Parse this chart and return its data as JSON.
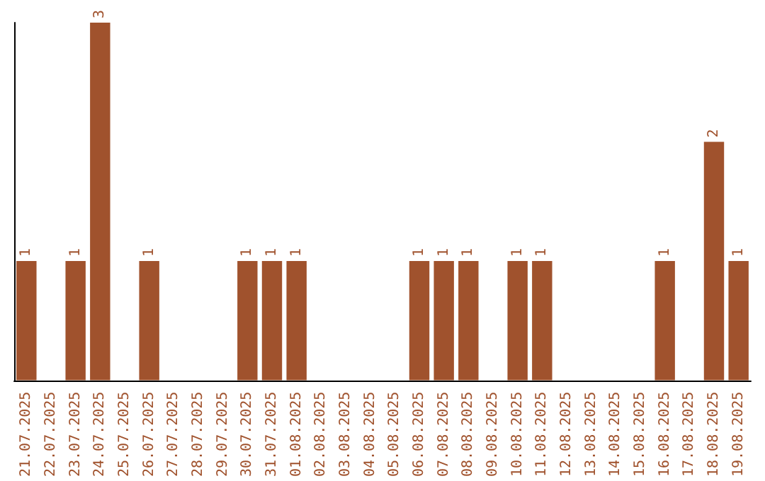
{
  "chart_data": {
    "type": "bar",
    "categories": [
      "21.07.2025",
      "22.07.2025",
      "23.07.2025",
      "24.07.2025",
      "25.07.2025",
      "26.07.2025",
      "27.07.2025",
      "28.07.2025",
      "29.07.2025",
      "30.07.2025",
      "31.07.2025",
      "01.08.2025",
      "02.08.2025",
      "03.08.2025",
      "04.08.2025",
      "05.08.2025",
      "06.08.2025",
      "07.08.2025",
      "08.08.2025",
      "09.08.2025",
      "10.08.2025",
      "11.08.2025",
      "12.08.2025",
      "13.08.2025",
      "14.08.2025",
      "15.08.2025",
      "16.08.2025",
      "17.08.2025",
      "18.08.2025",
      "19.08.2025"
    ],
    "values": [
      1,
      0,
      1,
      3,
      0,
      1,
      0,
      0,
      0,
      1,
      1,
      1,
      0,
      0,
      0,
      0,
      1,
      1,
      1,
      0,
      1,
      1,
      0,
      0,
      0,
      0,
      1,
      0,
      2,
      1
    ],
    "value_labels": [
      "1",
      null,
      "1",
      "3",
      null,
      "1",
      null,
      null,
      null,
      "1",
      "1",
      "1",
      null,
      null,
      null,
      null,
      "1",
      "1",
      "1",
      null,
      "1",
      "1",
      null,
      null,
      null,
      null,
      "1",
      null,
      "2",
      "1"
    ],
    "color": "#a0522d",
    "tick_labels": "x",
    "grid": false
  }
}
